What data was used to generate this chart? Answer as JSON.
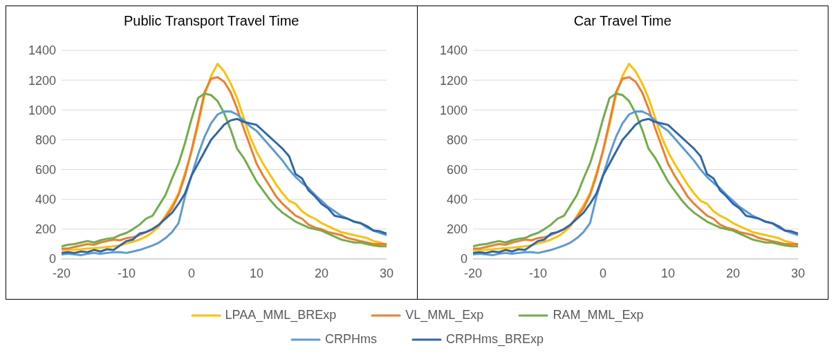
{
  "chart_data": [
    {
      "type": "line",
      "title": "Public Transport Travel Time",
      "x": [
        -20,
        -19,
        -18,
        -17,
        -16,
        -15,
        -14,
        -13,
        -12,
        -11,
        -10,
        -9,
        -8,
        -7,
        -6,
        -5,
        -4,
        -3,
        -2,
        -1,
        0,
        1,
        2,
        3,
        4,
        5,
        6,
        7,
        8,
        9,
        10,
        11,
        12,
        13,
        14,
        15,
        16,
        17,
        18,
        19,
        20,
        21,
        22,
        23,
        24,
        25,
        26,
        27,
        28,
        29,
        30
      ],
      "xlim": [
        -20,
        30
      ],
      "xticks": [
        -20,
        -10,
        0,
        10,
        20,
        30
      ],
      "ylim": [
        0,
        1400
      ],
      "yticks": [
        0,
        200,
        400,
        600,
        800,
        1000,
        1200,
        1400
      ],
      "grid": "y",
      "legend": "bottom",
      "series": [
        {
          "name": "LPAA_MML_BRExp",
          "color": "#ffc000",
          "values": [
            60,
            60,
            62,
            65,
            70,
            72,
            75,
            80,
            85,
            90,
            105,
            115,
            130,
            150,
            180,
            220,
            290,
            360,
            440,
            580,
            720,
            900,
            1100,
            1230,
            1310,
            1260,
            1180,
            1080,
            950,
            820,
            720,
            640,
            570,
            500,
            440,
            390,
            370,
            320,
            290,
            270,
            240,
            220,
            200,
            180,
            170,
            160,
            150,
            140,
            120,
            110,
            95
          ]
        },
        {
          "name": "VL_MML_Exp",
          "color": "#ed7d31",
          "values": [
            70,
            70,
            80,
            90,
            100,
            95,
            110,
            120,
            130,
            125,
            140,
            145,
            160,
            180,
            200,
            230,
            280,
            340,
            430,
            560,
            730,
            920,
            1120,
            1210,
            1220,
            1190,
            1120,
            1010,
            880,
            760,
            640,
            560,
            490,
            420,
            370,
            330,
            290,
            270,
            230,
            210,
            200,
            180,
            170,
            160,
            140,
            130,
            120,
            110,
            100,
            100,
            100
          ]
        },
        {
          "name": "RAM_MML_Exp",
          "color": "#70ad47",
          "values": [
            85,
            95,
            100,
            110,
            120,
            110,
            125,
            135,
            140,
            160,
            175,
            200,
            230,
            270,
            290,
            360,
            430,
            540,
            640,
            780,
            940,
            1080,
            1110,
            1100,
            1060,
            980,
            870,
            740,
            680,
            600,
            520,
            460,
            400,
            350,
            310,
            280,
            250,
            230,
            210,
            200,
            190,
            170,
            150,
            130,
            120,
            110,
            110,
            100,
            90,
            85,
            85
          ]
        },
        {
          "name": "CRPHms",
          "color": "#5b9bd5",
          "values": [
            30,
            35,
            30,
            25,
            35,
            40,
            35,
            40,
            45,
            45,
            40,
            50,
            60,
            75,
            90,
            110,
            140,
            180,
            240,
            420,
            560,
            700,
            820,
            910,
            970,
            990,
            990,
            970,
            930,
            890,
            860,
            810,
            760,
            710,
            660,
            600,
            550,
            510,
            475,
            430,
            390,
            350,
            320,
            290,
            270,
            250,
            240,
            210,
            190,
            175,
            160
          ]
        },
        {
          "name": "CRPHms_BRExp",
          "color": "#2e66ad",
          "values": [
            40,
            45,
            40,
            50,
            45,
            60,
            50,
            65,
            60,
            90,
            120,
            130,
            170,
            180,
            200,
            230,
            270,
            310,
            370,
            440,
            560,
            640,
            720,
            800,
            850,
            900,
            930,
            940,
            920,
            910,
            900,
            860,
            820,
            780,
            740,
            690,
            570,
            540,
            460,
            420,
            370,
            340,
            290,
            280,
            270,
            250,
            240,
            220,
            190,
            185,
            170
          ]
        }
      ]
    },
    {
      "type": "line",
      "title": "Car Travel Time",
      "x": [
        -20,
        -19,
        -18,
        -17,
        -16,
        -15,
        -14,
        -13,
        -12,
        -11,
        -10,
        -9,
        -8,
        -7,
        -6,
        -5,
        -4,
        -3,
        -2,
        -1,
        0,
        1,
        2,
        3,
        4,
        5,
        6,
        7,
        8,
        9,
        10,
        11,
        12,
        13,
        14,
        15,
        16,
        17,
        18,
        19,
        20,
        21,
        22,
        23,
        24,
        25,
        26,
        27,
        28,
        29,
        30
      ],
      "xlim": [
        -20,
        30
      ],
      "xticks": [
        -20,
        -10,
        0,
        10,
        20,
        30
      ],
      "ylim": [
        0,
        1400
      ],
      "yticks": [
        0,
        200,
        400,
        600,
        800,
        1000,
        1200,
        1400
      ],
      "grid": "y",
      "series": [
        {
          "color": "#ffc000",
          "values": [
            60,
            60,
            62,
            65,
            70,
            72,
            75,
            80,
            85,
            90,
            105,
            115,
            130,
            150,
            180,
            220,
            290,
            360,
            440,
            580,
            720,
            900,
            1100,
            1230,
            1310,
            1260,
            1180,
            1080,
            950,
            820,
            720,
            640,
            570,
            500,
            440,
            390,
            370,
            320,
            290,
            270,
            240,
            220,
            200,
            180,
            170,
            160,
            150,
            140,
            120,
            110,
            95
          ]
        },
        {
          "color": "#ed7d31",
          "values": [
            70,
            70,
            80,
            90,
            100,
            95,
            110,
            120,
            130,
            125,
            140,
            145,
            160,
            180,
            200,
            230,
            280,
            340,
            430,
            560,
            730,
            920,
            1120,
            1210,
            1220,
            1190,
            1120,
            1010,
            880,
            760,
            640,
            560,
            490,
            420,
            370,
            330,
            290,
            270,
            230,
            210,
            200,
            180,
            170,
            160,
            140,
            130,
            120,
            110,
            100,
            100,
            100
          ]
        },
        {
          "color": "#70ad47",
          "values": [
            85,
            95,
            100,
            110,
            120,
            110,
            125,
            135,
            140,
            160,
            175,
            200,
            230,
            270,
            290,
            360,
            430,
            540,
            640,
            780,
            940,
            1080,
            1110,
            1100,
            1060,
            980,
            870,
            740,
            680,
            600,
            520,
            460,
            400,
            350,
            310,
            280,
            250,
            230,
            210,
            200,
            190,
            170,
            150,
            130,
            120,
            110,
            110,
            100,
            90,
            85,
            85
          ]
        },
        {
          "color": "#5b9bd5",
          "values": [
            30,
            35,
            30,
            25,
            35,
            40,
            35,
            40,
            45,
            45,
            40,
            50,
            60,
            75,
            90,
            110,
            140,
            180,
            240,
            420,
            560,
            700,
            820,
            910,
            970,
            990,
            990,
            970,
            930,
            890,
            860,
            810,
            760,
            710,
            660,
            600,
            550,
            510,
            475,
            430,
            390,
            350,
            320,
            290,
            270,
            250,
            240,
            210,
            190,
            175,
            160
          ]
        },
        {
          "color": "#2e66ad",
          "values": [
            40,
            45,
            40,
            50,
            45,
            60,
            50,
            65,
            60,
            90,
            120,
            130,
            170,
            180,
            200,
            230,
            270,
            310,
            370,
            440,
            560,
            640,
            720,
            800,
            850,
            900,
            930,
            940,
            920,
            910,
            900,
            860,
            820,
            780,
            740,
            690,
            570,
            540,
            460,
            420,
            370,
            340,
            290,
            280,
            270,
            250,
            240,
            220,
            190,
            185,
            170
          ]
        }
      ]
    }
  ]
}
